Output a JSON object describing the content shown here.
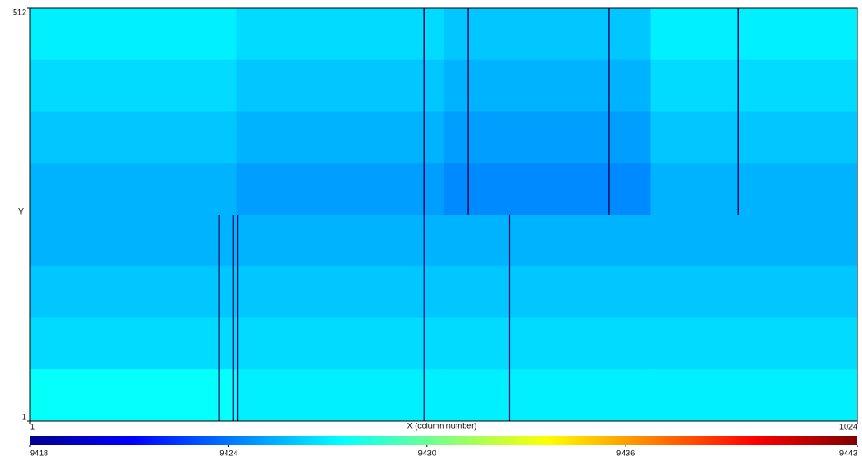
{
  "chart_data": {
    "type": "heatmap",
    "x_label": "X (column number)",
    "y_label": "Y",
    "xlim": [
      1,
      1024
    ],
    "ylim": [
      1,
      512
    ],
    "xticks": [
      1,
      1024
    ],
    "yticks": [
      1,
      512
    ],
    "z": [
      [
        9427.0,
        9426.5,
        9426.0,
        9427.0
      ],
      [
        9426.5,
        9426.0,
        9425.5,
        9426.5
      ],
      [
        9426.0,
        9425.5,
        9425.0,
        9426.0
      ],
      [
        9425.5,
        9425.0,
        9424.5,
        9425.5
      ],
      [
        9425.5,
        9425.5,
        9425.5,
        9425.5
      ],
      [
        9426.0,
        9426.0,
        9426.0,
        9426.0
      ],
      [
        9426.5,
        9426.5,
        9426.5,
        9426.5
      ],
      [
        9427.5,
        9427.0,
        9427.0,
        9427.0
      ]
    ],
    "dark_columns_top": [
      488,
      543,
      717,
      877
    ],
    "dark_columns_bottom": [
      235,
      252,
      258,
      488,
      594
    ],
    "colorscale": [
      "#00008f",
      "#0000ff",
      "#0080ff",
      "#00ffff",
      "#80ff80",
      "#ffff00",
      "#ff8000",
      "#ff0000",
      "#800000"
    ],
    "zlim": [
      9418,
      9443
    ],
    "zticks": [
      9418,
      9424,
      9430,
      9436,
      9443
    ]
  }
}
